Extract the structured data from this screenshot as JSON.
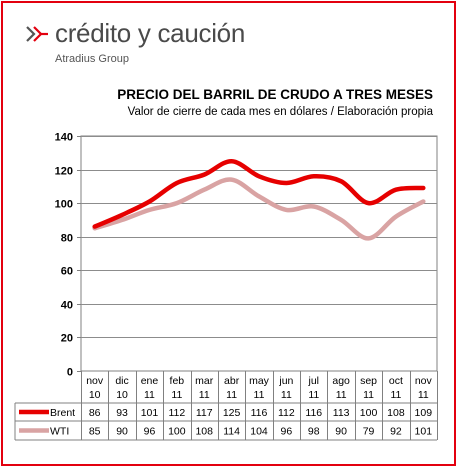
{
  "brand": {
    "name": "crédito y caución",
    "sub": "Atradius Group",
    "colors": {
      "accent": "#e3000f",
      "mark_dark": "#555555"
    }
  },
  "chart_data": {
    "type": "line",
    "title": "PRECIO DEL BARRIL DE CRUDO A TRES MESES",
    "subtitle": "Valor de cierre de cada mes en dólares / Elaboración propia",
    "categories": [
      [
        "nov",
        "10"
      ],
      [
        "dic",
        "10"
      ],
      [
        "ene",
        "11"
      ],
      [
        "feb",
        "11"
      ],
      [
        "mar",
        "11"
      ],
      [
        "abr",
        "11"
      ],
      [
        "may",
        "11"
      ],
      [
        "jun",
        "11"
      ],
      [
        "jul",
        "11"
      ],
      [
        "ago",
        "11"
      ],
      [
        "sep",
        "11"
      ],
      [
        "oct",
        "11"
      ],
      [
        "nov",
        "11"
      ]
    ],
    "series": [
      {
        "name": "Brent",
        "color": "#e60000",
        "values": [
          86,
          93,
          101,
          112,
          117,
          125,
          116,
          112,
          116,
          113,
          100,
          108,
          109
        ]
      },
      {
        "name": "WTI",
        "color": "#d9a3a3",
        "values": [
          85,
          90,
          96,
          100,
          108,
          114,
          104,
          96,
          98,
          90,
          79,
          92,
          101
        ]
      }
    ],
    "ylim": [
      0,
      140
    ],
    "yticks": [
      0,
      20,
      40,
      60,
      80,
      100,
      120,
      140
    ],
    "grid": true,
    "legend": "data-table-left"
  }
}
